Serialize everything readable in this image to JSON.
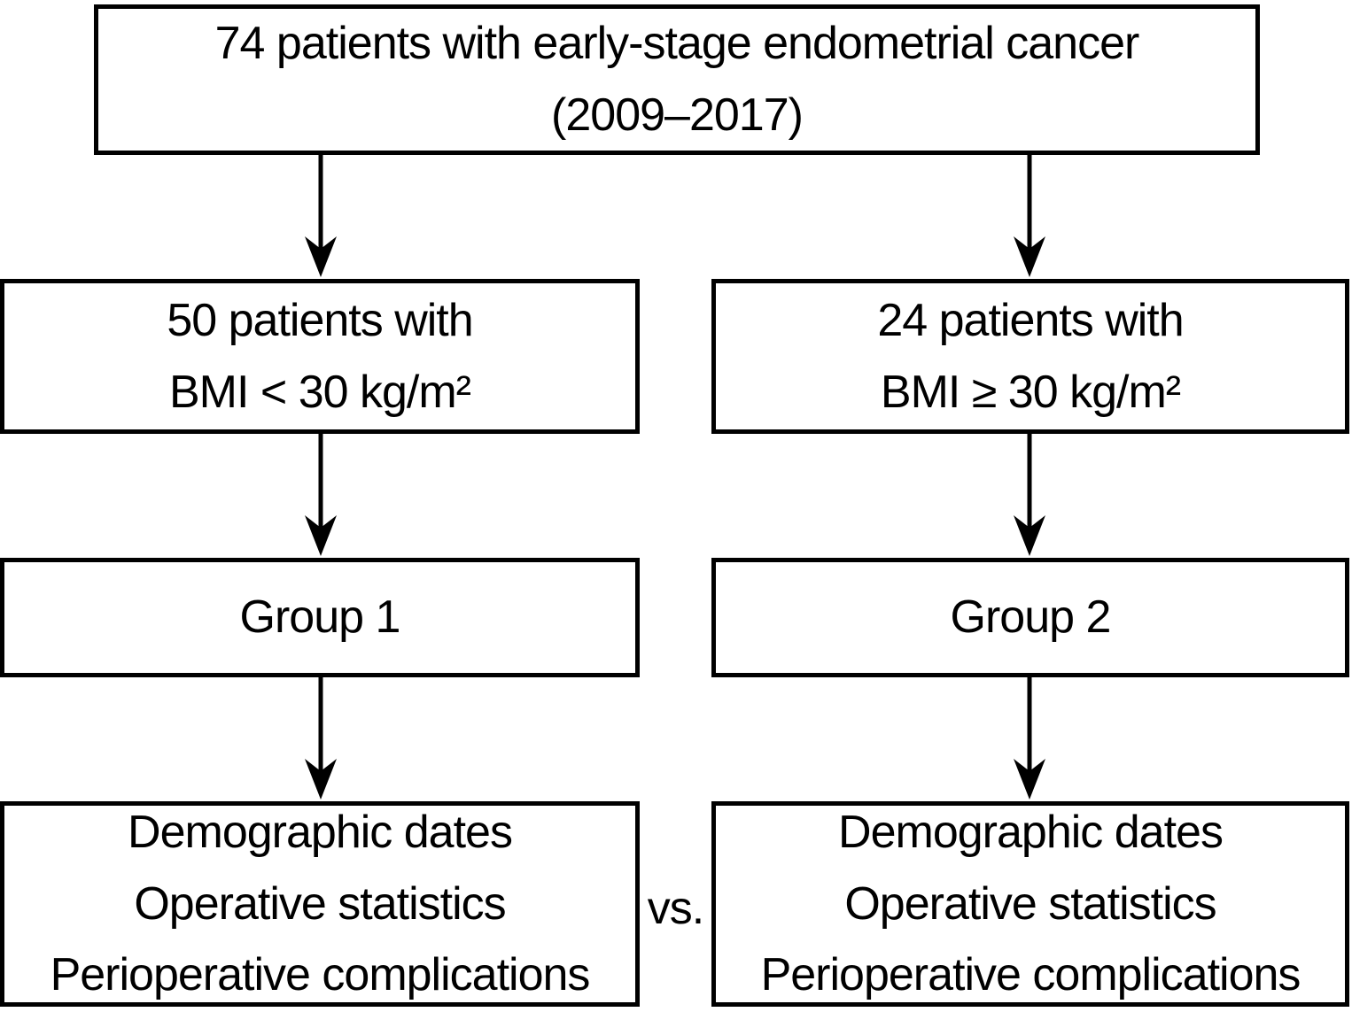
{
  "figure": {
    "background_color": "#ffffff",
    "border_color": "#000000",
    "text_color": "#000000",
    "top_box": {
      "line1": "74 patients with early-stage endometrial cancer",
      "line2": "(2009–2017)"
    },
    "left_branch": {
      "cohort_box": {
        "line1": "50 patients with",
        "line2": "BMI < 30 kg/m²"
      },
      "group_box": {
        "label": "Group 1"
      },
      "outcomes_box": {
        "line1": "Demographic dates",
        "line2": "Operative statistics",
        "line3": "Perioperative complications"
      }
    },
    "right_branch": {
      "cohort_box": {
        "line1": "24 patients with",
        "line2": "BMI ≥ 30 kg/m²"
      },
      "group_box": {
        "label": "Group 2"
      },
      "outcomes_box": {
        "line1": "Demographic dates",
        "line2": "Operative statistics",
        "line3": "Perioperative complications"
      }
    },
    "comparison_label": "vs."
  }
}
